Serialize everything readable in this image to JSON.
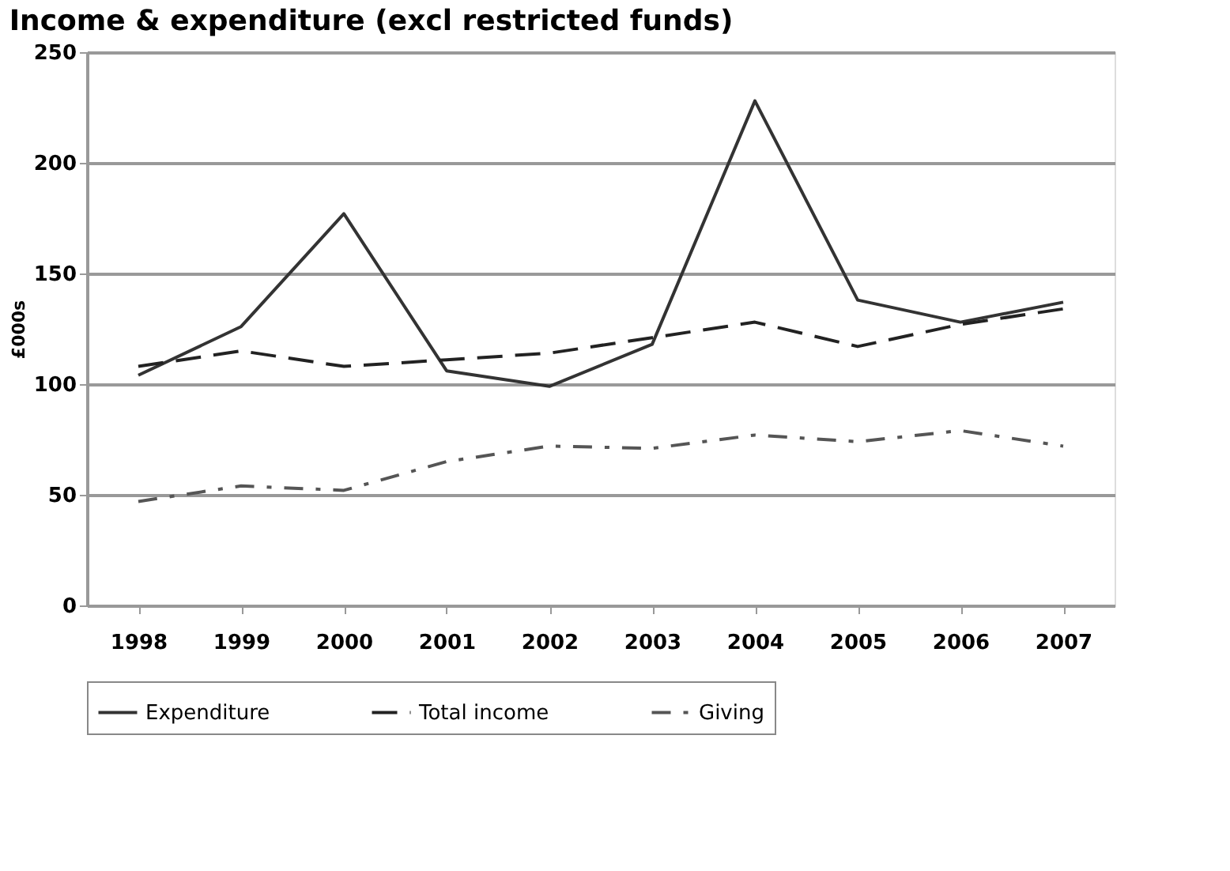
{
  "chart_data": {
    "type": "line",
    "title": "Income & expenditure (excl restricted funds)",
    "ylabel": "£000s",
    "categories": [
      "1998",
      "1999",
      "2000",
      "2001",
      "2002",
      "2003",
      "2004",
      "2005",
      "2006",
      "2007"
    ],
    "series": [
      {
        "name": "Expenditure",
        "color": "#333333",
        "line_style": "solid",
        "values": [
          104,
          126,
          177,
          106,
          99,
          118,
          228,
          138,
          128,
          137
        ]
      },
      {
        "name": "Total income",
        "color": "#222222",
        "line_style": "dashed",
        "values": [
          108,
          115,
          108,
          111,
          114,
          121,
          128,
          117,
          127,
          134
        ]
      },
      {
        "name": "Giving",
        "color": "#555555",
        "line_style": "dashdot",
        "values": [
          47,
          54,
          52,
          65,
          72,
          71,
          77,
          74,
          79,
          72
        ]
      }
    ],
    "ylim": [
      0,
      250
    ],
    "yticks": [
      0,
      50,
      100,
      150,
      200,
      250
    ],
    "grid": "y",
    "legend": "bottom",
    "marker": "none"
  }
}
